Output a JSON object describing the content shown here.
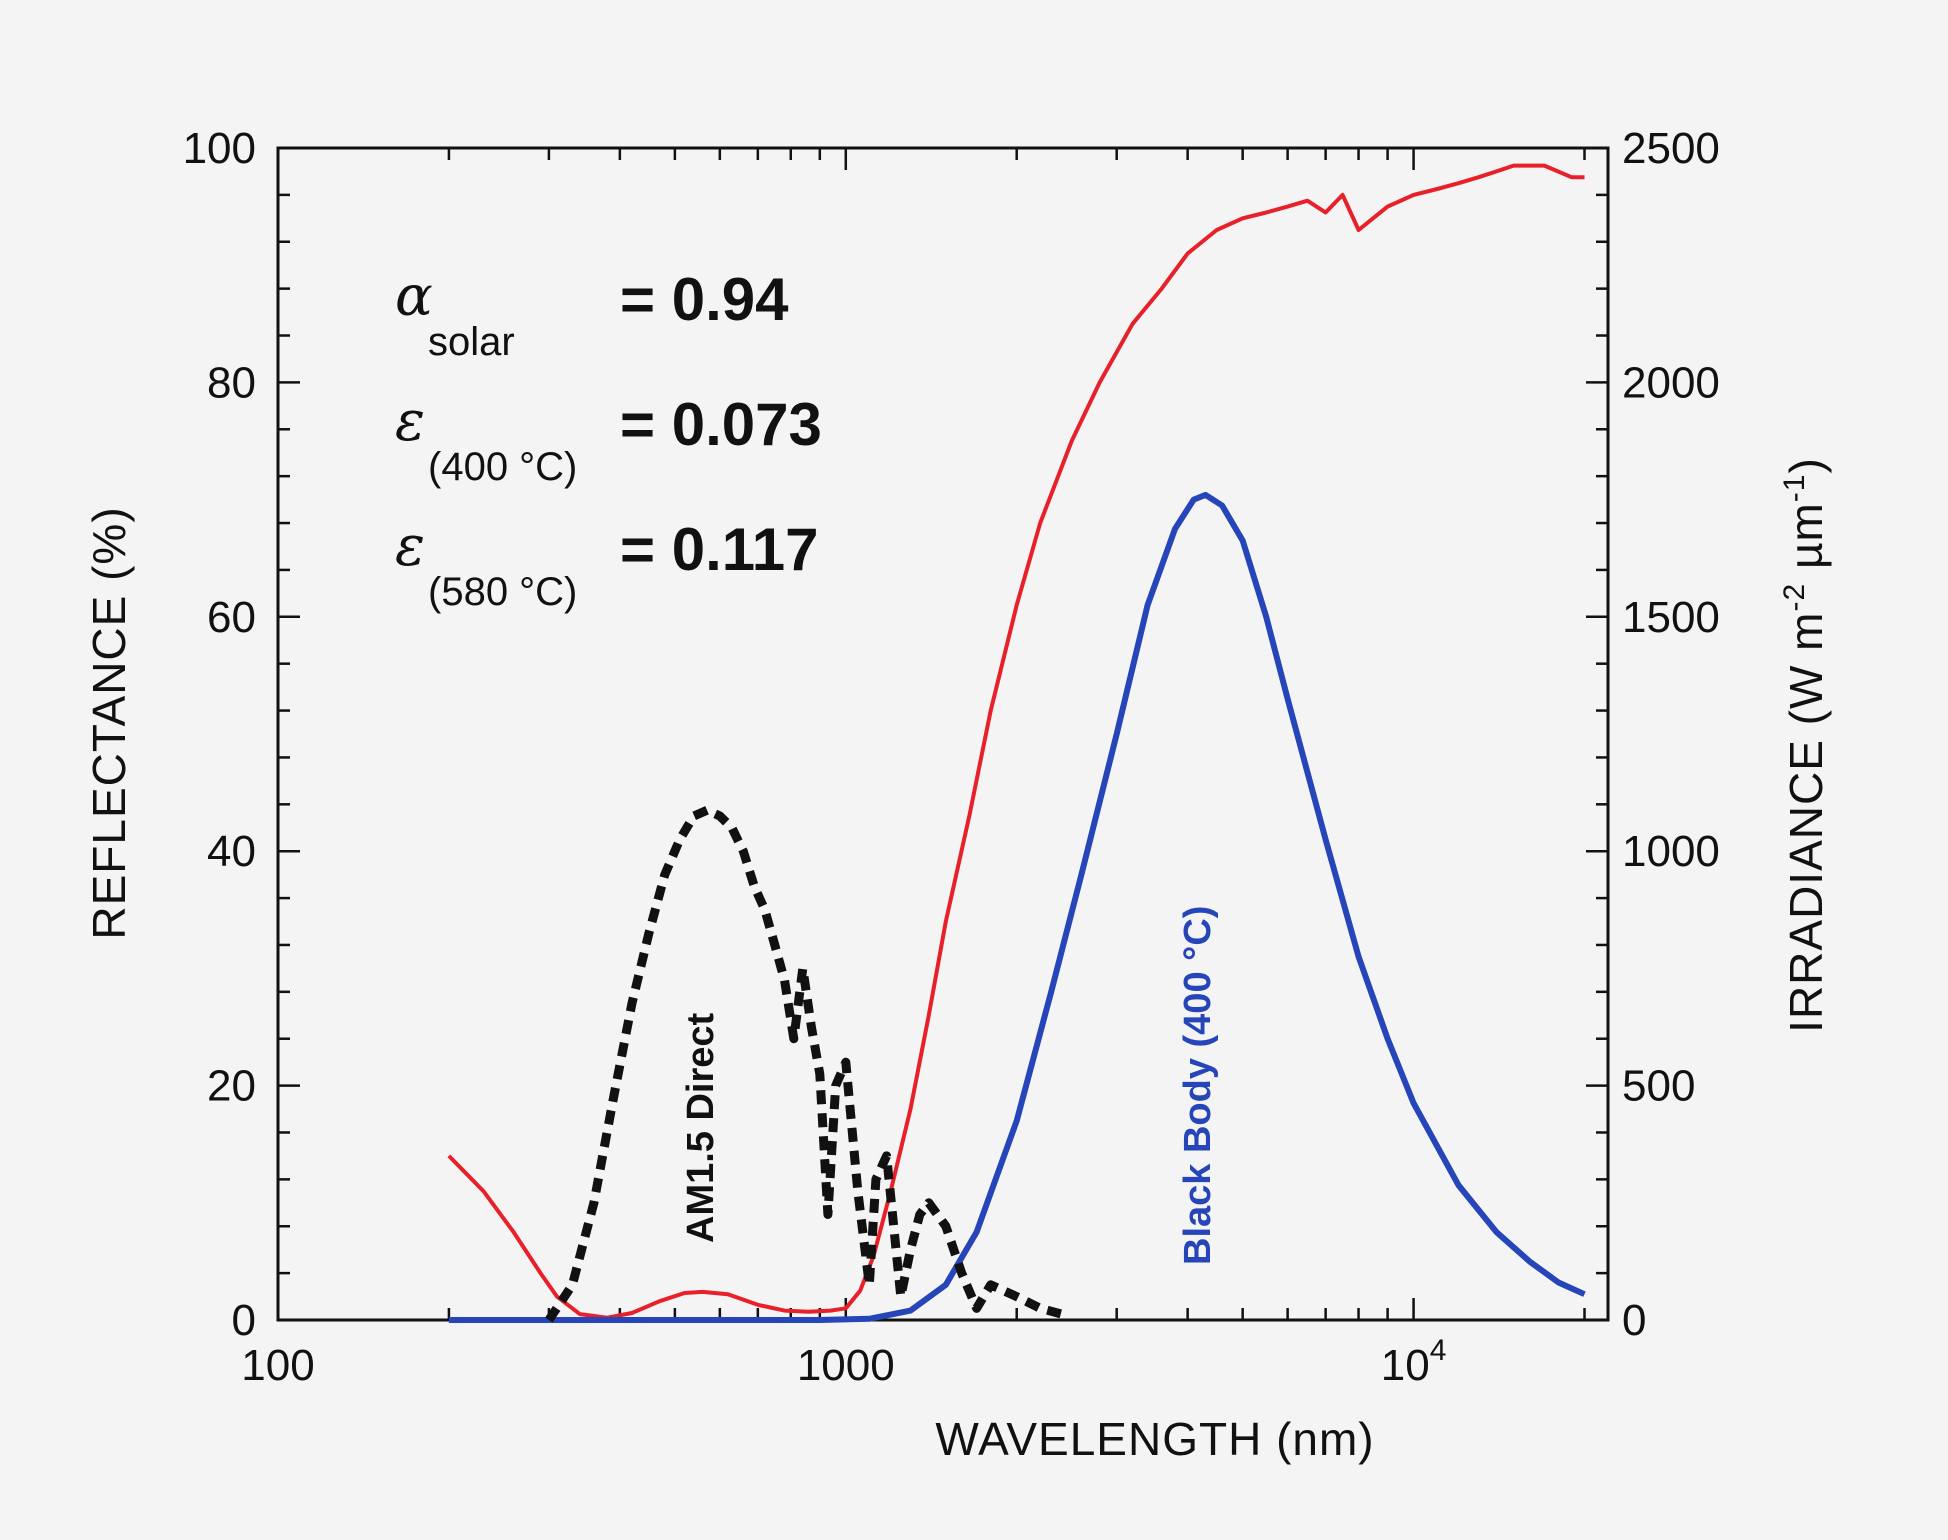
{
  "chart_data": {
    "type": "line",
    "xlabel": "WAVELENGTH  (nm)",
    "ylabel": "REFLECTANCE  (%)",
    "y2label": "IRRADIANCE  (W m",
    "y2label_exp1": "-2",
    "y2label_mid": " µm",
    "y2label_exp2": "-1",
    "y2label_end": ")",
    "x_scale": "log",
    "xlim": [
      100,
      22000
    ],
    "ylim": [
      0,
      100
    ],
    "y2lim": [
      0,
      2500
    ],
    "x_ticks": [
      {
        "value": 100,
        "base": "100",
        "exp": ""
      },
      {
        "value": 1000,
        "base": "1000",
        "exp": ""
      },
      {
        "value": 10000,
        "base": "10",
        "exp": "4"
      }
    ],
    "y_ticks": [
      "0",
      "20",
      "40",
      "60",
      "80",
      "100"
    ],
    "y2_ticks": [
      "0",
      "500",
      "1000",
      "1500",
      "2000",
      "2500"
    ],
    "grid": false,
    "annotations": [
      {
        "symbol": "α",
        "subscript": "solar",
        "value": "= 0.94"
      },
      {
        "symbol": "ε",
        "subscript": "(400 °C)",
        "value": "= 0.073"
      },
      {
        "symbol": "ε",
        "subscript": "(580 °C)",
        "value": "= 0.117"
      }
    ],
    "series": [
      {
        "axis": "left",
        "color": "#e8202a",
        "style": "solid",
        "x": [
          200,
          230,
          260,
          290,
          310,
          340,
          380,
          420,
          470,
          520,
          560,
          620,
          700,
          780,
          860,
          940,
          1000,
          1060,
          1120,
          1200,
          1300,
          1400,
          1500,
          1650,
          1800,
          2000,
          2200,
          2500,
          2800,
          3200,
          3600,
          4000,
          4500,
          5000,
          5500,
          6000,
          6500,
          7000,
          7500,
          8000,
          9000,
          10000,
          11000,
          12000,
          13000,
          14000,
          15000,
          17000,
          19000,
          20000
        ],
        "y": [
          14,
          11,
          7.5,
          4,
          2,
          0.5,
          0.2,
          0.6,
          1.6,
          2.3,
          2.4,
          2.2,
          1.3,
          0.8,
          0.7,
          0.8,
          1.0,
          2.5,
          5.5,
          11,
          18,
          26,
          34,
          43,
          52,
          61,
          68,
          75,
          80,
          85,
          88,
          91,
          93,
          94,
          94.5,
          95,
          95.5,
          94.5,
          96,
          93,
          95,
          96,
          96.5,
          97,
          97.5,
          98,
          98.5,
          98.5,
          97.5,
          97.5
        ]
      },
      {
        "axis": "left",
        "color": "#2545b8",
        "style": "solid",
        "label": "Black Body (400 °C)",
        "x": [
          200,
          500,
          900,
          1100,
          1300,
          1500,
          1700,
          2000,
          2300,
          2600,
          3000,
          3400,
          3800,
          4100,
          4300,
          4600,
          5000,
          5500,
          6000,
          7000,
          8000,
          9000,
          10000,
          12000,
          14000,
          16000,
          18000,
          20000
        ],
        "y": [
          0,
          0,
          0,
          0.1,
          0.8,
          3,
          7.5,
          17,
          28,
          38,
          50,
          61,
          67.5,
          70,
          70.4,
          69.5,
          66.5,
          60,
          53,
          41,
          31,
          24,
          18.5,
          11.5,
          7.5,
          5,
          3.2,
          2.2
        ]
      },
      {
        "axis": "left",
        "color": "#111111",
        "style": "dashed",
        "label": "AM1.5 Direct",
        "x": [
          300,
          330,
          360,
          390,
          420,
          450,
          480,
          510,
          540,
          570,
          600,
          630,
          660,
          690,
          720,
          750,
          780,
          810,
          840,
          870,
          900,
          930,
          960,
          1000,
          1050,
          1100,
          1130,
          1180,
          1250,
          1300,
          1350,
          1400,
          1500,
          1600,
          1700,
          1800,
          2000,
          2200,
          2400
        ],
        "y": [
          0,
          3,
          10,
          19,
          27,
          33,
          38,
          41,
          43,
          43.5,
          43,
          42,
          40,
          37,
          35,
          32,
          29,
          24,
          30,
          25,
          21,
          9,
          20,
          22,
          11,
          3,
          12,
          14,
          2,
          6,
          9,
          10,
          8,
          4,
          1,
          3,
          2,
          1,
          0.5
        ]
      }
    ]
  }
}
